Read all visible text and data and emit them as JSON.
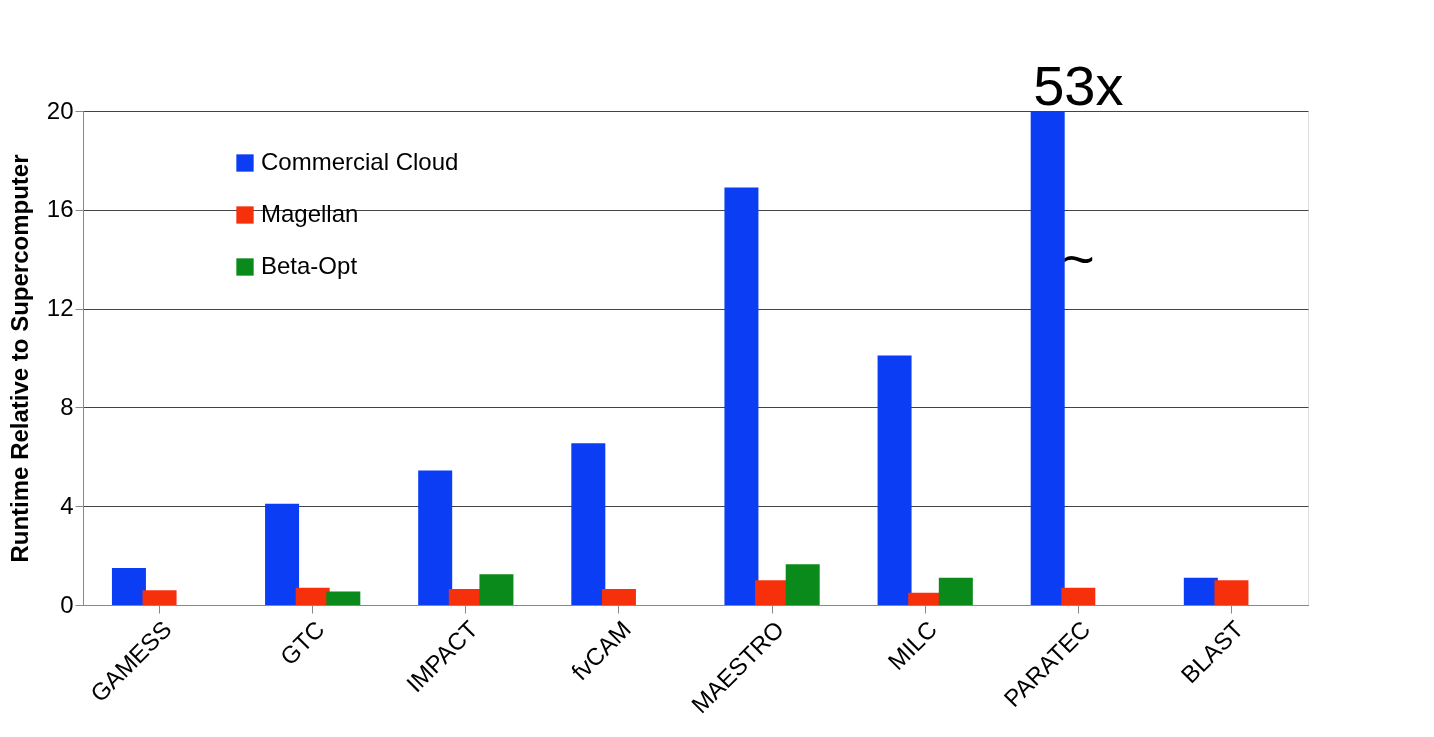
{
  "chart_data": {
    "type": "bar",
    "ylabel": "Runtime Relative to Supercomputer",
    "categories": [
      "GAMESS",
      "GTC",
      "IMPACT",
      "fvCAM",
      "MAESTRO",
      "MILC",
      "PARATEC",
      "BLAST"
    ],
    "series": [
      {
        "name": "Commercial Cloud",
        "color": "#0b3df5",
        "values": [
          1.5,
          4.1,
          5.45,
          6.55,
          16.9,
          10.1,
          20,
          1.1
        ]
      },
      {
        "name": "Magellan",
        "color": "#f5300b",
        "values": [
          0.6,
          0.7,
          0.65,
          0.65,
          1.0,
          0.5,
          0.7,
          1.0
        ]
      },
      {
        "name": "Beta-Opt",
        "color": "#0a8a1a",
        "values": [
          null,
          0.55,
          1.25,
          null,
          1.65,
          1.1,
          null,
          null
        ]
      }
    ],
    "ylim": [
      0,
      20
    ],
    "yticks": [
      0,
      4,
      8,
      12,
      16,
      20
    ],
    "grid": "y",
    "legend": "top left",
    "annotations": [
      {
        "text": "53x",
        "x": "PARATEC",
        "y": 20
      },
      "~"
    ]
  }
}
